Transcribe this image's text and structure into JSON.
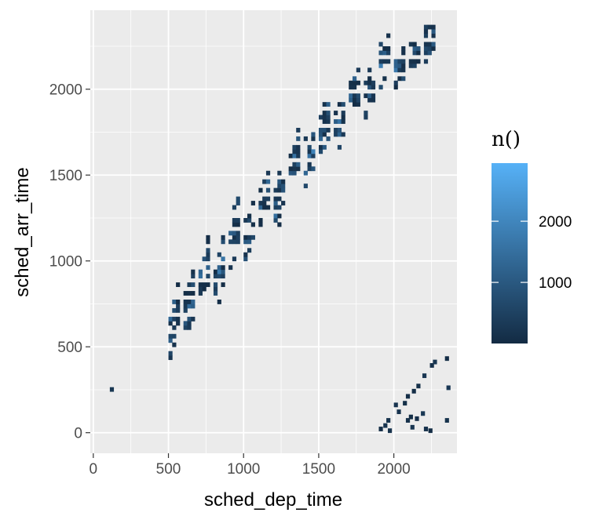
{
  "chart_data": {
    "type": "heatmap",
    "xlabel": "sched_dep_time",
    "ylabel": "sched_arr_time",
    "xlim": [
      -20,
      2420
    ],
    "ylim": [
      -120,
      2460
    ],
    "x_ticks": [
      0,
      500,
      1000,
      1500,
      2000
    ],
    "x_tick_labels": [
      "0",
      "500",
      "1000",
      "1500",
      "2000"
    ],
    "y_ticks": [
      0,
      500,
      1000,
      1500,
      2000
    ],
    "y_tick_labels": [
      "0",
      "500",
      "1000",
      "1500",
      "2000"
    ],
    "grid": true,
    "legend": {
      "title": "n()",
      "placement": "right",
      "range": [
        1,
        2950
      ],
      "breaks": [
        1000,
        2000
      ],
      "break_labels": [
        "1000",
        "2000"
      ],
      "low_color": "#132B43",
      "high_color": "#56B1F7"
    },
    "bin_width": [
      25,
      25
    ],
    "bands": [
      {
        "x0": 500,
        "x1": 600,
        "y0": 620,
        "y1": 930,
        "w": 200
      },
      {
        "x0": 600,
        "x1": 800,
        "y0": 700,
        "y1": 1130,
        "w": 190
      },
      {
        "x0": 800,
        "x1": 1000,
        "y0": 900,
        "y1": 1380,
        "w": 200
      },
      {
        "x0": 1000,
        "x1": 1200,
        "y0": 1150,
        "y1": 1550,
        "w": 170
      },
      {
        "x0": 1200,
        "x1": 1400,
        "y0": 1350,
        "y1": 1760,
        "w": 190
      },
      {
        "x0": 1400,
        "x1": 1600,
        "y0": 1600,
        "y1": 1920,
        "w": 180
      },
      {
        "x0": 1600,
        "x1": 1800,
        "y0": 1780,
        "y1": 2180,
        "w": 190
      },
      {
        "x0": 1800,
        "x1": 2000,
        "y0": 1980,
        "y1": 2340,
        "w": 170
      },
      {
        "x0": 2000,
        "x1": 2280,
        "y0": 2130,
        "y1": 2340,
        "w": 140
      }
    ],
    "isolated_points": [
      [
        110,
        240
      ],
      [
        1950,
        60
      ],
      [
        1930,
        30
      ],
      [
        2000,
        150
      ],
      [
        2060,
        160
      ],
      [
        2080,
        200
      ],
      [
        2120,
        230
      ],
      [
        2150,
        260
      ],
      [
        2190,
        320
      ],
      [
        2240,
        380
      ],
      [
        2260,
        400
      ],
      [
        2340,
        420
      ],
      [
        2350,
        250
      ],
      [
        2340,
        60
      ],
      [
        2200,
        10
      ],
      [
        2230,
        0
      ],
      [
        1960,
        0
      ],
      [
        1900,
        10
      ],
      [
        2080,
        60
      ],
      [
        2100,
        80
      ],
      [
        2140,
        70
      ],
      [
        2020,
        110
      ],
      [
        2180,
        100
      ],
      [
        2110,
        20
      ]
    ]
  }
}
